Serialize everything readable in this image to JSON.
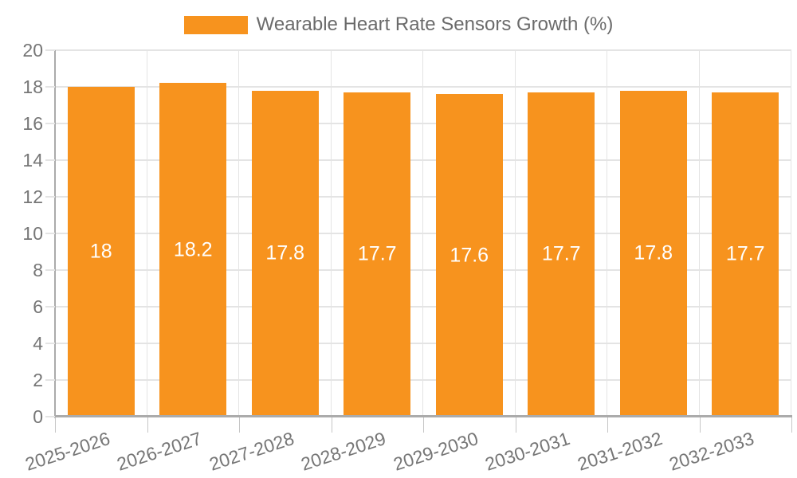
{
  "chart_data": {
    "type": "bar",
    "title": "Wearable Heart Rate Sensors Growth (%)",
    "categories": [
      "2025-2026",
      "2026-2027",
      "2027-2028",
      "2028-2029",
      "2029-2030",
      "2030-2031",
      "2031-2032",
      "2032-2033"
    ],
    "series": [
      {
        "name": "Wearable Heart Rate Sensors Growth (%)",
        "values": [
          18,
          18.2,
          17.8,
          17.7,
          17.6,
          17.7,
          17.8,
          17.7
        ]
      }
    ],
    "value_labels": [
      "18",
      "18.2",
      "17.8",
      "17.7",
      "17.6",
      "17.7",
      "17.8",
      "17.7"
    ],
    "xlabel": "",
    "ylabel": "",
    "ylim": [
      0,
      20
    ],
    "ytick_step": 2,
    "grid": true,
    "legend_position": "top",
    "colors": {
      "bar": "#F7931E",
      "grid": "#E4E4E4",
      "axis_line": "#ABABAB",
      "tick": "#C6C6C6",
      "axis_text": "#767676",
      "legend_text": "#6B6B6B",
      "value_label": "#FFFFFF",
      "background": "#FFFFFF"
    }
  },
  "legend": {
    "label": "Wearable Heart Rate Sensors Growth (%)"
  }
}
